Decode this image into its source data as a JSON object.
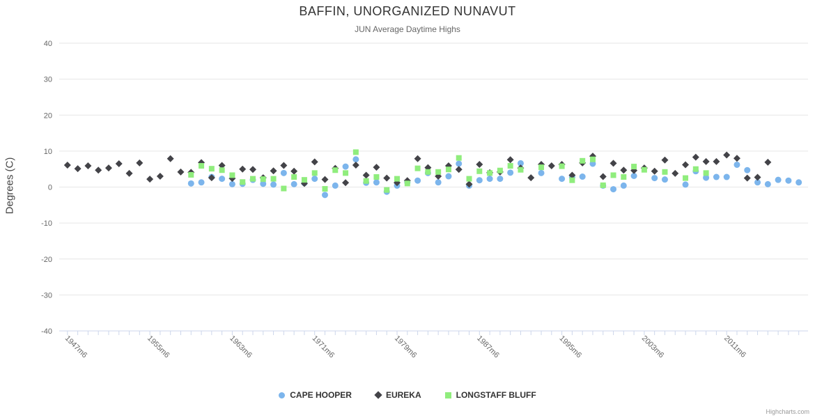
{
  "header": {
    "title": "BAFFIN, UNORGANIZED NUNAVUT",
    "subtitle": "JUN Average Daytime Highs"
  },
  "credits": "Highcharts.com",
  "chart_data": {
    "type": "scatter",
    "title": "BAFFIN, UNORGANIZED NUNAVUT",
    "subtitle": "JUN Average Daytime Highs",
    "xlabel": "",
    "ylabel": "Degrees (C)",
    "ylim": [
      -40,
      40
    ],
    "yticks": [
      40,
      30,
      20,
      10,
      0,
      -10,
      -20,
      -30,
      -40
    ],
    "xlim": [
      1946.2,
      2018.9
    ],
    "x_minor_tick_interval": 1,
    "x_major_ticks": [
      {
        "year": 1947,
        "label": "1947m6"
      },
      {
        "year": 1955,
        "label": "1955m6"
      },
      {
        "year": 1963,
        "label": "1963m6"
      },
      {
        "year": 1971,
        "label": "1971m6"
      },
      {
        "year": 1979,
        "label": "1979m6"
      },
      {
        "year": 1987,
        "label": "1987m6"
      },
      {
        "year": 1995,
        "label": "1995m6"
      },
      {
        "year": 2003,
        "label": "2003m6"
      },
      {
        "year": 2011,
        "label": "2011m6"
      }
    ],
    "grid": true,
    "grid_color": "#e6e6e6",
    "axis_line_color": "#ccd6eb",
    "label_color": "#666666",
    "legend_position": "bottom",
    "series": [
      {
        "name": "CAPE HOOPER",
        "marker": "circle",
        "color": "#7cb5ec",
        "points": [
          [
            1959,
            1.0
          ],
          [
            1960,
            1.3
          ],
          [
            1961,
            2.8
          ],
          [
            1962,
            2.3
          ],
          [
            1963,
            0.8
          ],
          [
            1964,
            0.9
          ],
          [
            1965,
            2.0
          ],
          [
            1966,
            0.9
          ],
          [
            1967,
            0.7
          ],
          [
            1968,
            3.9
          ],
          [
            1969,
            0.8
          ],
          [
            1970,
            1.1
          ],
          [
            1971,
            2.3
          ],
          [
            1972,
            -2.2
          ],
          [
            1973,
            0.4
          ],
          [
            1974,
            5.7
          ],
          [
            1975,
            7.7
          ],
          [
            1976,
            1.2
          ],
          [
            1977,
            1.3
          ],
          [
            1978,
            -1.3
          ],
          [
            1979,
            0.4
          ],
          [
            1980,
            1.3
          ],
          [
            1981,
            1.8
          ],
          [
            1982,
            3.9
          ],
          [
            1983,
            1.3
          ],
          [
            1984,
            3.0
          ],
          [
            1985,
            6.5
          ],
          [
            1986,
            0.4
          ],
          [
            1987,
            1.9
          ],
          [
            1988,
            2.3
          ],
          [
            1989,
            2.3
          ],
          [
            1990,
            4.0
          ],
          [
            1991,
            6.6
          ],
          [
            1993,
            3.9
          ],
          [
            1995,
            2.3
          ],
          [
            1996,
            2.7
          ],
          [
            1997,
            2.9
          ],
          [
            1998,
            6.5
          ],
          [
            1999,
            0.4
          ],
          [
            2000,
            -0.6
          ],
          [
            2001,
            0.4
          ],
          [
            2002,
            3.1
          ],
          [
            2004,
            2.5
          ],
          [
            2005,
            2.1
          ],
          [
            2007,
            0.7
          ],
          [
            2008,
            4.4
          ],
          [
            2009,
            2.6
          ],
          [
            2010,
            2.8
          ],
          [
            2011,
            2.8
          ],
          [
            2012,
            6.2
          ],
          [
            2013,
            4.7
          ],
          [
            2014,
            1.3
          ],
          [
            2015,
            0.8
          ],
          [
            2016,
            2.0
          ],
          [
            2017,
            1.8
          ],
          [
            2018,
            1.3
          ]
        ]
      },
      {
        "name": "EUREKA",
        "marker": "diamond",
        "color": "#434348",
        "points": [
          [
            1947,
            6.1
          ],
          [
            1948,
            5.1
          ],
          [
            1949,
            5.9
          ],
          [
            1950,
            4.7
          ],
          [
            1951,
            5.3
          ],
          [
            1952,
            6.5
          ],
          [
            1953,
            3.8
          ],
          [
            1954,
            6.7
          ],
          [
            1955,
            2.2
          ],
          [
            1956,
            3.0
          ],
          [
            1957,
            7.9
          ],
          [
            1958,
            4.2
          ],
          [
            1959,
            4.1
          ],
          [
            1960,
            6.8
          ],
          [
            1961,
            2.6
          ],
          [
            1962,
            6.0
          ],
          [
            1963,
            2.4
          ],
          [
            1964,
            5.0
          ],
          [
            1965,
            4.9
          ],
          [
            1966,
            2.6
          ],
          [
            1967,
            4.5
          ],
          [
            1968,
            6.0
          ],
          [
            1969,
            4.4
          ],
          [
            1970,
            1.0
          ],
          [
            1971,
            7.0
          ],
          [
            1972,
            2.1
          ],
          [
            1973,
            5.2
          ],
          [
            1974,
            1.2
          ],
          [
            1975,
            6.1
          ],
          [
            1976,
            3.3
          ],
          [
            1977,
            5.5
          ],
          [
            1978,
            2.5
          ],
          [
            1979,
            1.2
          ],
          [
            1980,
            1.8
          ],
          [
            1981,
            7.9
          ],
          [
            1982,
            5.4
          ],
          [
            1983,
            3.0
          ],
          [
            1984,
            5.9
          ],
          [
            1985,
            4.9
          ],
          [
            1986,
            0.8
          ],
          [
            1987,
            6.3
          ],
          [
            1988,
            4.0
          ],
          [
            1989,
            4.2
          ],
          [
            1990,
            7.6
          ],
          [
            1991,
            5.3
          ],
          [
            1992,
            2.6
          ],
          [
            1993,
            6.3
          ],
          [
            1994,
            5.9
          ],
          [
            1995,
            6.3
          ],
          [
            1996,
            3.3
          ],
          [
            1997,
            6.7
          ],
          [
            1998,
            8.6
          ],
          [
            1999,
            2.9
          ],
          [
            2000,
            6.6
          ],
          [
            2001,
            4.7
          ],
          [
            2002,
            4.6
          ],
          [
            2003,
            5.3
          ],
          [
            2004,
            4.4
          ],
          [
            2005,
            7.5
          ],
          [
            2006,
            3.8
          ],
          [
            2007,
            6.2
          ],
          [
            2008,
            8.3
          ],
          [
            2009,
            7.1
          ],
          [
            2010,
            7.1
          ],
          [
            2011,
            8.9
          ],
          [
            2012,
            8.0
          ],
          [
            2013,
            2.5
          ],
          [
            2014,
            2.7
          ],
          [
            2015,
            6.9
          ]
        ]
      },
      {
        "name": "LONGSTAFF BLUFF",
        "marker": "square",
        "color": "#90ed7d",
        "points": [
          [
            1959,
            3.4
          ],
          [
            1960,
            5.9
          ],
          [
            1961,
            5.1
          ],
          [
            1962,
            4.7
          ],
          [
            1963,
            3.3
          ],
          [
            1964,
            1.4
          ],
          [
            1965,
            2.3
          ],
          [
            1966,
            2.2
          ],
          [
            1967,
            2.3
          ],
          [
            1968,
            -0.4
          ],
          [
            1969,
            2.8
          ],
          [
            1970,
            2.0
          ],
          [
            1971,
            3.9
          ],
          [
            1972,
            -0.5
          ],
          [
            1973,
            4.7
          ],
          [
            1974,
            3.9
          ],
          [
            1975,
            9.7
          ],
          [
            1976,
            1.7
          ],
          [
            1977,
            2.8
          ],
          [
            1978,
            -0.8
          ],
          [
            1979,
            2.3
          ],
          [
            1980,
            1.0
          ],
          [
            1981,
            5.2
          ],
          [
            1982,
            4.2
          ],
          [
            1983,
            4.2
          ],
          [
            1984,
            4.9
          ],
          [
            1985,
            8.1
          ],
          [
            1986,
            2.3
          ],
          [
            1987,
            4.4
          ],
          [
            1988,
            3.9
          ],
          [
            1989,
            4.6
          ],
          [
            1990,
            5.9
          ],
          [
            1991,
            4.8
          ],
          [
            1993,
            5.5
          ],
          [
            1995,
            5.8
          ],
          [
            1996,
            1.9
          ],
          [
            1997,
            7.3
          ],
          [
            1998,
            7.7
          ],
          [
            1999,
            0.5
          ],
          [
            2000,
            3.3
          ],
          [
            2001,
            2.8
          ],
          [
            2002,
            5.7
          ],
          [
            2003,
            4.8
          ],
          [
            2005,
            4.2
          ],
          [
            2007,
            2.5
          ],
          [
            2008,
            5.0
          ],
          [
            2009,
            3.9
          ]
        ]
      }
    ]
  }
}
